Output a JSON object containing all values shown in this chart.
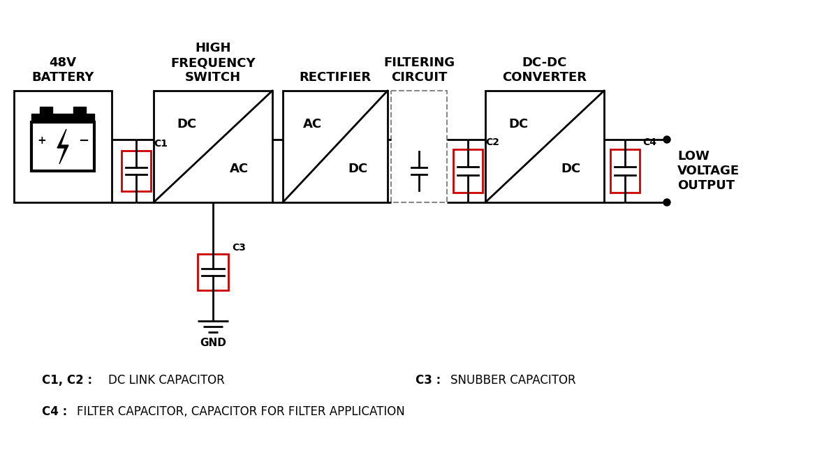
{
  "bg_color": "#ffffff",
  "line_color": "#000000",
  "cap_color": "#cc0000",
  "battery_label": "48V\nBATTERY",
  "hfs_label": "HIGH\nFREQUENCY\nSWITCH",
  "rect_label": "RECTIFIER",
  "filt_label": "FILTERING\nCIRCUIT",
  "dcdc_label": "DC-DC\nCONVERTER",
  "output_label": "LOW\nVOLTAGE\nOUTPUT",
  "gnd_label": "GND",
  "font_family": "DejaVu Sans"
}
